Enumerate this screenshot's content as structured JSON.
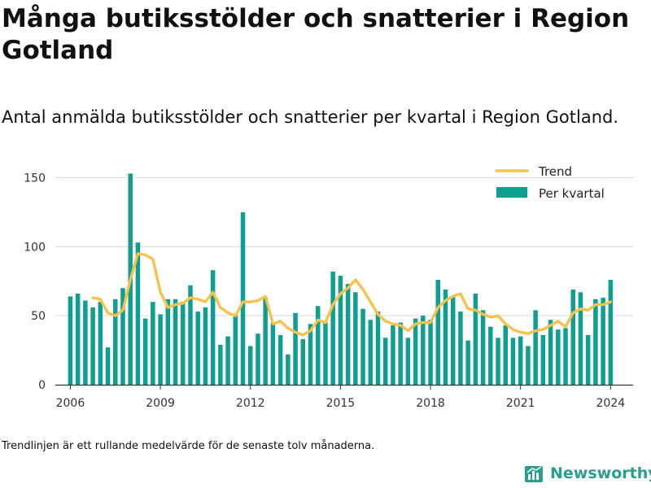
{
  "header": {
    "title": "Många butiksstölder och snatterier i Region Gotland",
    "subtitle": "Antal anmälda butiksstölder och snatterier per kvartal i Region Gotland."
  },
  "footnote": "Trendlinjen är ett rullande medelvärde för de senaste tolv månaderna.",
  "brand": {
    "name": "Newsworthy",
    "icon": "newsworthy-logo-icon"
  },
  "colors": {
    "bars": "#0e9f91",
    "trend": "#f6c24b",
    "grid": "#d9d9d9",
    "axis": "#333333",
    "brand": "#2a9d8f"
  },
  "chart_data": {
    "type": "bar",
    "x_start": {
      "year": 2006,
      "quarter": 1
    },
    "xlim": [
      2005.5,
      2024.75
    ],
    "ylim": [
      0,
      155
    ],
    "x_ticks": [
      2006,
      2009,
      2012,
      2015,
      2018,
      2021,
      2024
    ],
    "y_ticks": [
      0,
      50,
      100,
      150
    ],
    "grid": "horizontal",
    "legend_position": "top-right",
    "legend": [
      {
        "label": "Trend",
        "kind": "line"
      },
      {
        "label": "Per kvartal",
        "kind": "bar"
      }
    ],
    "series": [
      {
        "name": "Per kvartal",
        "type": "bar",
        "values": [
          64,
          66,
          61,
          56,
          60,
          27,
          62,
          70,
          153,
          103,
          48,
          60,
          51,
          62,
          62,
          60,
          72,
          53,
          56,
          83,
          29,
          35,
          51,
          125,
          28,
          37,
          63,
          45,
          36,
          22,
          52,
          33,
          44,
          57,
          45,
          82,
          79,
          73,
          67,
          55,
          47,
          53,
          34,
          43,
          45,
          34,
          48,
          50,
          47,
          76,
          69,
          64,
          53,
          32,
          66,
          54,
          42,
          34,
          43,
          34,
          35,
          28,
          54,
          36,
          47,
          40,
          41,
          69,
          67,
          36,
          62,
          63,
          76
        ]
      },
      {
        "name": "Trend",
        "type": "line",
        "values": [
          null,
          null,
          null,
          63,
          62,
          52,
          50,
          54,
          76,
          95,
          94,
          91,
          67,
          56,
          58,
          59,
          63,
          62,
          60,
          67,
          56,
          52,
          50,
          60,
          60,
          61,
          64,
          44,
          46,
          41,
          38,
          36,
          39,
          47,
          45,
          58,
          66,
          70,
          76,
          69,
          60,
          51,
          46,
          44,
          43,
          39,
          44,
          45,
          45,
          56,
          61,
          64,
          66,
          55,
          54,
          51,
          49,
          50,
          44,
          40,
          38,
          37,
          39,
          40,
          43,
          46,
          42,
          52,
          55,
          54,
          58,
          58,
          60
        ]
      }
    ]
  }
}
